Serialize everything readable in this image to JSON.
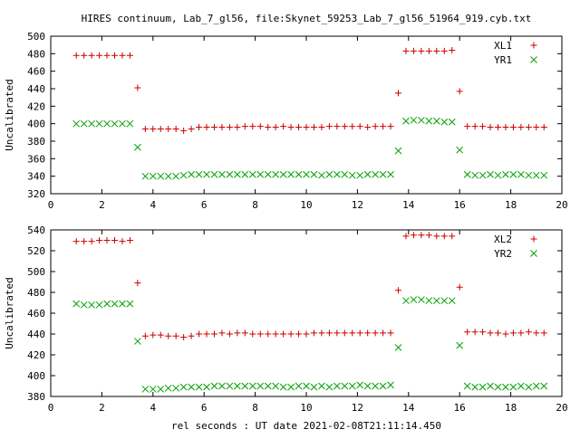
{
  "title": "HIRES continuum, Lab_7_gl56, file:Skynet_59253_Lab_7_gl56_51964_919.cyb.txt",
  "xlabel": "rel seconds : UT date 2021-02-08T21:11:14.450",
  "colors": {
    "plus": "#cc0000",
    "cross": "#00a000",
    "axis": "#000000"
  },
  "chart_data": [
    {
      "type": "scatter",
      "ylabel": "Uncalibrated",
      "xlim": [
        0,
        20
      ],
      "ylim": [
        320,
        500
      ],
      "xticks": [
        0,
        2,
        4,
        6,
        8,
        10,
        12,
        14,
        16,
        18,
        20
      ],
      "yticks": [
        320,
        340,
        360,
        380,
        400,
        420,
        440,
        460,
        480,
        500
      ],
      "grid": false,
      "legend": "top-right",
      "series": [
        {
          "name": "XL1",
          "marker": "plus",
          "x": [
            1.0,
            1.3,
            1.6,
            1.9,
            2.2,
            2.5,
            2.8,
            3.1,
            3.4,
            3.7,
            4.0,
            4.3,
            4.6,
            4.9,
            5.2,
            5.5,
            5.8,
            6.1,
            6.4,
            6.7,
            7.0,
            7.3,
            7.6,
            7.9,
            8.2,
            8.5,
            8.8,
            9.1,
            9.4,
            9.7,
            10.0,
            10.3,
            10.6,
            10.9,
            11.2,
            11.5,
            11.8,
            12.1,
            12.4,
            12.7,
            13.0,
            13.3,
            13.6,
            13.9,
            14.2,
            14.5,
            14.8,
            15.1,
            15.4,
            15.7,
            16.0,
            16.3,
            16.6,
            16.9,
            17.2,
            17.5,
            17.8,
            18.1,
            18.4,
            18.7,
            19.0,
            19.3
          ],
          "y": [
            478,
            478,
            478,
            478,
            478,
            478,
            478,
            478,
            441,
            394,
            394,
            394,
            394,
            394,
            392,
            394,
            396,
            396,
            396,
            396,
            396,
            396,
            397,
            397,
            397,
            396,
            396,
            397,
            396,
            396,
            396,
            396,
            396,
            397,
            397,
            397,
            397,
            397,
            396,
            397,
            397,
            397,
            435,
            483,
            483,
            483,
            483,
            483,
            483,
            484,
            437,
            397,
            397,
            397,
            396,
            396,
            396,
            396,
            396,
            396,
            396,
            396
          ]
        },
        {
          "name": "YR1",
          "marker": "cross",
          "x": [
            1.0,
            1.3,
            1.6,
            1.9,
            2.2,
            2.5,
            2.8,
            3.1,
            3.4,
            3.7,
            4.0,
            4.3,
            4.6,
            4.9,
            5.2,
            5.5,
            5.8,
            6.1,
            6.4,
            6.7,
            7.0,
            7.3,
            7.6,
            7.9,
            8.2,
            8.5,
            8.8,
            9.1,
            9.4,
            9.7,
            10.0,
            10.3,
            10.6,
            10.9,
            11.2,
            11.5,
            11.8,
            12.1,
            12.4,
            12.7,
            13.0,
            13.3,
            13.6,
            13.9,
            14.2,
            14.5,
            14.8,
            15.1,
            15.4,
            15.7,
            16.0,
            16.3,
            16.6,
            16.9,
            17.2,
            17.5,
            17.8,
            18.1,
            18.4,
            18.7,
            19.0,
            19.3
          ],
          "y": [
            400,
            400,
            400,
            400,
            400,
            400,
            400,
            400,
            373,
            340,
            340,
            340,
            340,
            340,
            341,
            342,
            342,
            342,
            342,
            342,
            342,
            342,
            342,
            342,
            342,
            342,
            342,
            342,
            342,
            342,
            342,
            342,
            341,
            342,
            342,
            342,
            341,
            341,
            342,
            342,
            342,
            342,
            369,
            403,
            404,
            404,
            403,
            403,
            402,
            402,
            370,
            342,
            341,
            341,
            342,
            341,
            342,
            342,
            342,
            341,
            341,
            341
          ]
        }
      ]
    },
    {
      "type": "scatter",
      "ylabel": "Uncalibrated",
      "xlim": [
        0,
        20
      ],
      "ylim": [
        380,
        540
      ],
      "xticks": [
        0,
        2,
        4,
        6,
        8,
        10,
        12,
        14,
        16,
        18,
        20
      ],
      "yticks": [
        380,
        400,
        420,
        440,
        460,
        480,
        500,
        520,
        540
      ],
      "grid": false,
      "legend": "top-right",
      "series": [
        {
          "name": "XL2",
          "marker": "plus",
          "x": [
            1.0,
            1.3,
            1.6,
            1.9,
            2.2,
            2.5,
            2.8,
            3.1,
            3.4,
            3.7,
            4.0,
            4.3,
            4.6,
            4.9,
            5.2,
            5.5,
            5.8,
            6.1,
            6.4,
            6.7,
            7.0,
            7.3,
            7.6,
            7.9,
            8.2,
            8.5,
            8.8,
            9.1,
            9.4,
            9.7,
            10.0,
            10.3,
            10.6,
            10.9,
            11.2,
            11.5,
            11.8,
            12.1,
            12.4,
            12.7,
            13.0,
            13.3,
            13.6,
            13.9,
            14.2,
            14.5,
            14.8,
            15.1,
            15.4,
            15.7,
            16.0,
            16.3,
            16.6,
            16.9,
            17.2,
            17.5,
            17.8,
            18.1,
            18.4,
            18.7,
            19.0,
            19.3
          ],
          "y": [
            529,
            529,
            529,
            530,
            530,
            530,
            529,
            530,
            489,
            438,
            439,
            439,
            438,
            438,
            437,
            438,
            440,
            440,
            440,
            441,
            440,
            441,
            441,
            440,
            440,
            440,
            440,
            440,
            440,
            440,
            440,
            441,
            441,
            441,
            441,
            441,
            441,
            441,
            441,
            441,
            441,
            441,
            482,
            534,
            535,
            535,
            535,
            534,
            534,
            534,
            485,
            442,
            442,
            442,
            441,
            441,
            440,
            441,
            441,
            442,
            441,
            441
          ]
        },
        {
          "name": "YR2",
          "marker": "cross",
          "x": [
            1.0,
            1.3,
            1.6,
            1.9,
            2.2,
            2.5,
            2.8,
            3.1,
            3.4,
            3.7,
            4.0,
            4.3,
            4.6,
            4.9,
            5.2,
            5.5,
            5.8,
            6.1,
            6.4,
            6.7,
            7.0,
            7.3,
            7.6,
            7.9,
            8.2,
            8.5,
            8.8,
            9.1,
            9.4,
            9.7,
            10.0,
            10.3,
            10.6,
            10.9,
            11.2,
            11.5,
            11.8,
            12.1,
            12.4,
            12.7,
            13.0,
            13.3,
            13.6,
            13.9,
            14.2,
            14.5,
            14.8,
            15.1,
            15.4,
            15.7,
            16.0,
            16.3,
            16.6,
            16.9,
            17.2,
            17.5,
            17.8,
            18.1,
            18.4,
            18.7,
            19.0,
            19.3
          ],
          "y": [
            469,
            468,
            468,
            468,
            469,
            469,
            469,
            469,
            433,
            387,
            387,
            387,
            388,
            388,
            389,
            389,
            389,
            389,
            390,
            390,
            390,
            390,
            390,
            390,
            390,
            390,
            390,
            389,
            389,
            390,
            390,
            389,
            390,
            389,
            390,
            390,
            390,
            391,
            390,
            390,
            390,
            391,
            427,
            472,
            473,
            473,
            472,
            472,
            472,
            472,
            429,
            390,
            389,
            389,
            390,
            389,
            389,
            389,
            390,
            389,
            390,
            390
          ]
        }
      ]
    }
  ]
}
